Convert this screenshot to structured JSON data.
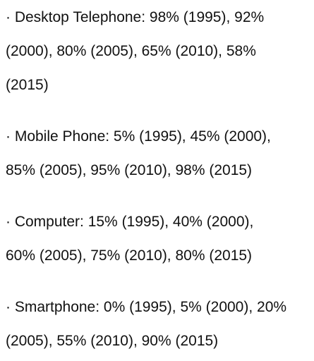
{
  "items": [
    {
      "lines": [
        "· Desktop Telephone: 98% (1995), 92%",
        "(2000), 80% (2005), 65% (2010), 58%",
        "(2015)"
      ]
    },
    {
      "lines": [
        "· Mobile Phone: 5% (1995), 45% (2000),",
        "85% (2005), 95% (2010), 98% (2015)"
      ]
    },
    {
      "lines": [
        "· Computer: 15% (1995), 40% (2000),",
        "60% (2005), 75% (2010), 80% (2015)"
      ]
    },
    {
      "lines": [
        "· Smartphone: 0% (1995), 5% (2000), 20%",
        "(2005), 55% (2010), 90% (2015)"
      ]
    }
  ]
}
